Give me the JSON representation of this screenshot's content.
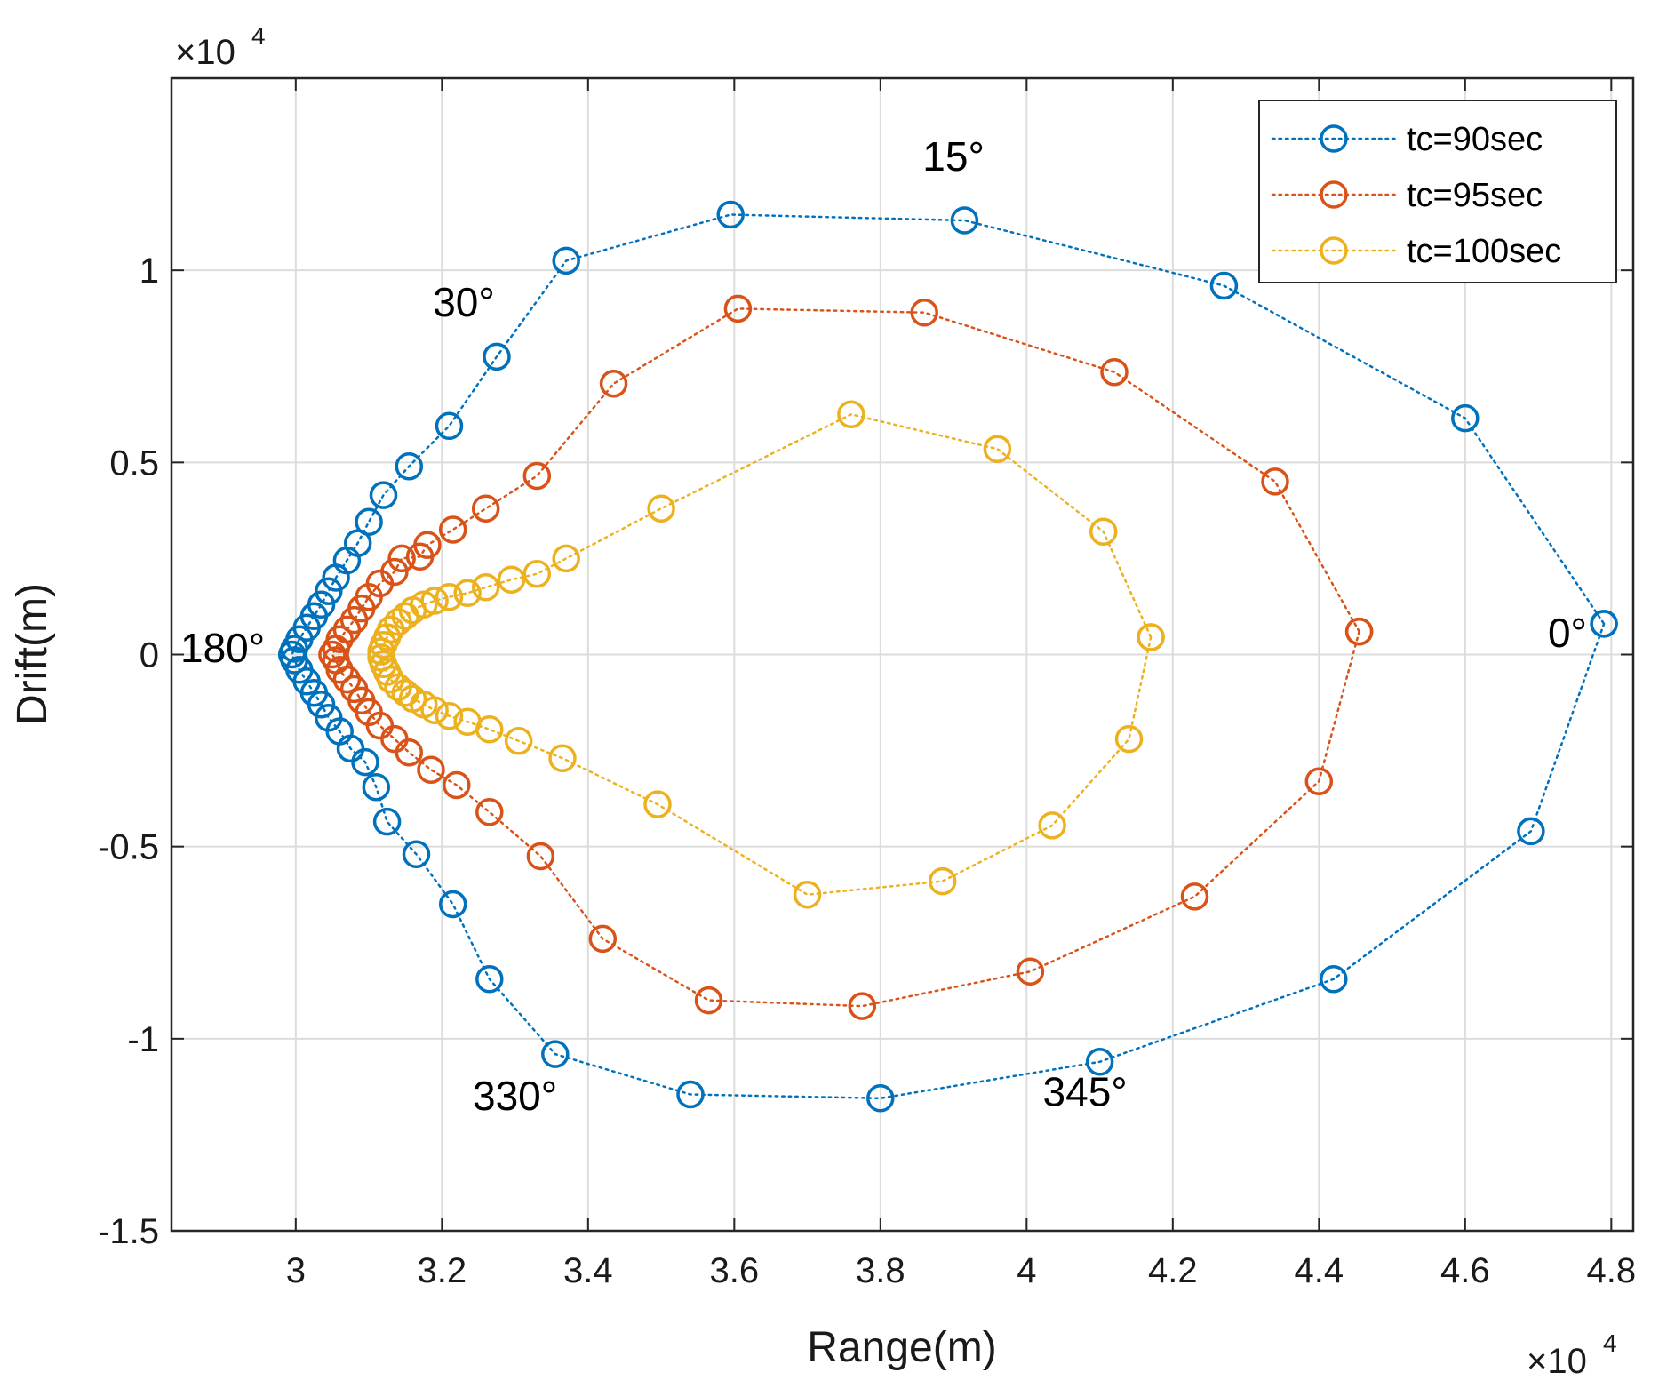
{
  "chart_data": {
    "type": "line",
    "title": "",
    "xlabel": "Range(m)",
    "ylabel": "Drift(m)",
    "x_exponent_label": "×10",
    "y_exponent_label": "×10",
    "exponent": "4",
    "xlim": [
      2.83,
      4.83
    ],
    "ylim": [
      -1.5,
      1.5
    ],
    "xticks": [
      3,
      3.2,
      3.4,
      3.6,
      3.8,
      4,
      4.2,
      4.4,
      4.6,
      4.8
    ],
    "xtick_labels": [
      "3",
      "3.2",
      "3.4",
      "3.6",
      "3.8",
      "4",
      "4.2",
      "4.4",
      "4.6",
      "4.8"
    ],
    "yticks": [
      -1.5,
      -1,
      -0.5,
      0,
      0.5,
      1
    ],
    "ytick_labels": [
      "-1.5",
      "-1",
      "-0.5",
      "0",
      "0.5",
      "1"
    ],
    "grid": true,
    "legend_position": "top-right",
    "series": [
      {
        "name": "tc=90sec",
        "color": "#0072BD",
        "marker": "circle",
        "linestyle": "dotted",
        "points": [
          [
            4.79,
            0.08
          ],
          [
            4.69,
            -0.46
          ],
          [
            4.42,
            -0.845
          ],
          [
            4.1,
            -1.06
          ],
          [
            3.8,
            -1.155
          ],
          [
            3.54,
            -1.145
          ],
          [
            3.355,
            -1.04
          ],
          [
            3.265,
            -0.845
          ],
          [
            3.215,
            -0.65
          ],
          [
            3.165,
            -0.52
          ],
          [
            3.125,
            -0.435
          ],
          [
            3.11,
            -0.345
          ],
          [
            3.095,
            -0.28
          ],
          [
            3.075,
            -0.245
          ],
          [
            3.06,
            -0.2
          ],
          [
            3.045,
            -0.165
          ],
          [
            3.035,
            -0.13
          ],
          [
            3.025,
            -0.1
          ],
          [
            3.015,
            -0.07
          ],
          [
            3.005,
            -0.04
          ],
          [
            2.998,
            -0.015
          ],
          [
            2.995,
            0.0
          ],
          [
            2.998,
            0.015
          ],
          [
            3.005,
            0.04
          ],
          [
            3.015,
            0.07
          ],
          [
            3.025,
            0.1
          ],
          [
            3.035,
            0.13
          ],
          [
            3.045,
            0.165
          ],
          [
            3.055,
            0.2
          ],
          [
            3.07,
            0.245
          ],
          [
            3.085,
            0.29
          ],
          [
            3.1,
            0.345
          ],
          [
            3.12,
            0.415
          ],
          [
            3.155,
            0.49
          ],
          [
            3.21,
            0.595
          ],
          [
            3.275,
            0.775
          ],
          [
            3.37,
            1.025
          ],
          [
            3.595,
            1.145
          ],
          [
            3.915,
            1.13
          ],
          [
            4.27,
            0.96
          ],
          [
            4.6,
            0.615
          ],
          [
            4.79,
            0.08
          ]
        ]
      },
      {
        "name": "tc=95sec",
        "color": "#D95319",
        "marker": "circle",
        "linestyle": "dotted",
        "points": [
          [
            4.455,
            0.06
          ],
          [
            4.4,
            -0.33
          ],
          [
            4.23,
            -0.63
          ],
          [
            4.005,
            -0.825
          ],
          [
            3.775,
            -0.915
          ],
          [
            3.565,
            -0.9
          ],
          [
            3.42,
            -0.74
          ],
          [
            3.335,
            -0.525
          ],
          [
            3.265,
            -0.41
          ],
          [
            3.22,
            -0.34
          ],
          [
            3.185,
            -0.3
          ],
          [
            3.155,
            -0.255
          ],
          [
            3.135,
            -0.22
          ],
          [
            3.115,
            -0.185
          ],
          [
            3.1,
            -0.15
          ],
          [
            3.09,
            -0.12
          ],
          [
            3.08,
            -0.09
          ],
          [
            3.07,
            -0.065
          ],
          [
            3.06,
            -0.04
          ],
          [
            3.055,
            -0.015
          ],
          [
            3.05,
            0.0
          ],
          [
            3.055,
            0.015
          ],
          [
            3.06,
            0.04
          ],
          [
            3.07,
            0.065
          ],
          [
            3.08,
            0.09
          ],
          [
            3.09,
            0.12
          ],
          [
            3.1,
            0.15
          ],
          [
            3.115,
            0.185
          ],
          [
            3.135,
            0.215
          ],
          [
            3.145,
            0.25
          ],
          [
            3.17,
            0.255
          ],
          [
            3.18,
            0.285
          ],
          [
            3.215,
            0.325
          ],
          [
            3.26,
            0.38
          ],
          [
            3.33,
            0.465
          ],
          [
            3.435,
            0.705
          ],
          [
            3.605,
            0.9
          ],
          [
            3.86,
            0.89
          ],
          [
            4.12,
            0.735
          ],
          [
            4.34,
            0.45
          ],
          [
            4.455,
            0.06
          ]
        ]
      },
      {
        "name": "tc=100sec",
        "color": "#EDB120",
        "marker": "circle",
        "linestyle": "dotted",
        "points": [
          [
            4.17,
            0.045
          ],
          [
            4.14,
            -0.22
          ],
          [
            4.035,
            -0.445
          ],
          [
            3.885,
            -0.59
          ],
          [
            3.7,
            -0.625
          ],
          [
            3.495,
            -0.39
          ],
          [
            3.365,
            -0.27
          ],
          [
            3.305,
            -0.225
          ],
          [
            3.265,
            -0.195
          ],
          [
            3.235,
            -0.175
          ],
          [
            3.21,
            -0.16
          ],
          [
            3.19,
            -0.145
          ],
          [
            3.175,
            -0.13
          ],
          [
            3.16,
            -0.115
          ],
          [
            3.15,
            -0.1
          ],
          [
            3.14,
            -0.085
          ],
          [
            3.13,
            -0.065
          ],
          [
            3.125,
            -0.045
          ],
          [
            3.12,
            -0.025
          ],
          [
            3.117,
            -0.008
          ],
          [
            3.117,
            0.008
          ],
          [
            3.12,
            0.025
          ],
          [
            3.125,
            0.045
          ],
          [
            3.13,
            0.065
          ],
          [
            3.14,
            0.085
          ],
          [
            3.15,
            0.1
          ],
          [
            3.16,
            0.115
          ],
          [
            3.175,
            0.13
          ],
          [
            3.19,
            0.14
          ],
          [
            3.21,
            0.15
          ],
          [
            3.235,
            0.16
          ],
          [
            3.26,
            0.175
          ],
          [
            3.295,
            0.195
          ],
          [
            3.33,
            0.21
          ],
          [
            3.37,
            0.25
          ],
          [
            3.5,
            0.38
          ],
          [
            3.76,
            0.625
          ],
          [
            3.96,
            0.535
          ],
          [
            4.105,
            0.32
          ],
          [
            4.17,
            0.045
          ]
        ]
      }
    ],
    "annotations": [
      {
        "text": "15°",
        "x": 3.9,
        "y": 1.26
      },
      {
        "text": "30°",
        "x": 3.23,
        "y": 0.88
      },
      {
        "text": "180°",
        "x": 2.9,
        "y": -0.02
      },
      {
        "text": "0°",
        "x": 4.74,
        "y": 0.02
      },
      {
        "text": "330°",
        "x": 3.3,
        "y": -1.185
      },
      {
        "text": "345°",
        "x": 4.08,
        "y": -1.175
      }
    ]
  }
}
